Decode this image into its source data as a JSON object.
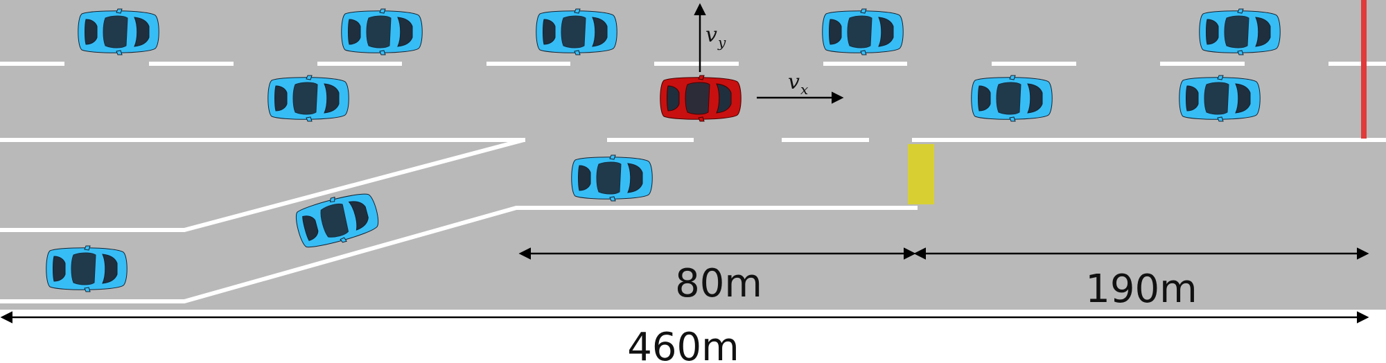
{
  "colors": {
    "road": "#b9b9b9",
    "lane_marking": "#ffffff",
    "ego_car": "#c81010",
    "other_car": "#37bdf5",
    "car_window": "#1f2f3d",
    "merge_marker": "#d8d033",
    "end_line": "#e03a3a",
    "ink": "#000000"
  },
  "labels": {
    "vx": "v",
    "vx_sub": "x",
    "vy": "v",
    "vy_sub": "y"
  },
  "dimensions": [
    {
      "id": "merge-length",
      "text": "80m"
    },
    {
      "id": "after-merge-length",
      "text": "190m"
    },
    {
      "id": "total-length",
      "text": "460m"
    }
  ]
}
